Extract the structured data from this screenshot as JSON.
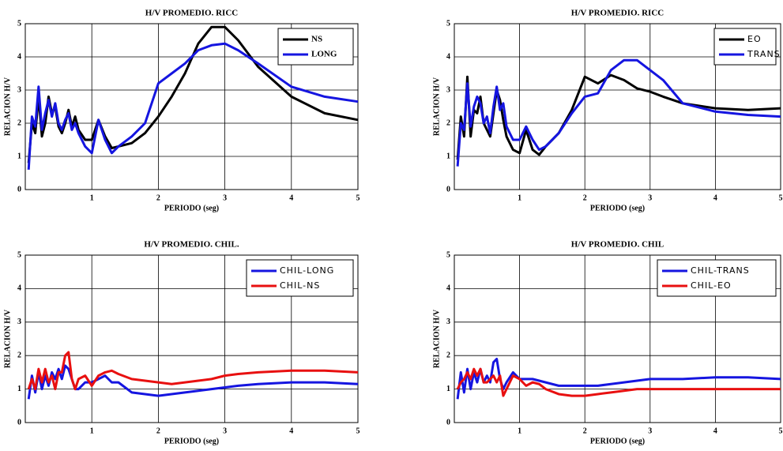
{
  "chart_data": [
    {
      "type": "line",
      "title": "H/V PROMEDIO. RICC",
      "xlabel": "PERIODO (seg)",
      "ylabel": "RELACION H/V",
      "x": [
        0.05,
        0.1,
        0.15,
        0.2,
        0.25,
        0.3,
        0.35,
        0.4,
        0.45,
        0.5,
        0.55,
        0.6,
        0.65,
        0.7,
        0.75,
        0.8,
        0.9,
        1.0,
        1.1,
        1.2,
        1.3,
        1.4,
        1.6,
        1.8,
        2.0,
        2.2,
        2.4,
        2.6,
        2.8,
        3.0,
        3.2,
        3.5,
        4.0,
        4.5,
        5.0
      ],
      "series": [
        {
          "name": "NS",
          "color": "#000000",
          "values": [
            0.8,
            2.0,
            1.7,
            2.8,
            1.6,
            2.0,
            2.8,
            2.3,
            2.5,
            1.9,
            1.7,
            2.0,
            2.4,
            1.9,
            2.2,
            1.8,
            1.5,
            1.5,
            2.1,
            1.6,
            1.25,
            1.3,
            1.4,
            1.7,
            2.2,
            2.8,
            3.5,
            4.4,
            4.9,
            4.9,
            4.5,
            3.7,
            2.8,
            2.3,
            2.1
          ]
        },
        {
          "name": "LONG",
          "color": "#1515e0",
          "values": [
            0.6,
            2.2,
            1.9,
            3.1,
            1.8,
            2.3,
            2.7,
            2.2,
            2.6,
            2.0,
            1.8,
            2.1,
            2.3,
            1.8,
            2.0,
            1.7,
            1.3,
            1.1,
            2.1,
            1.5,
            1.1,
            1.3,
            1.6,
            2.0,
            3.2,
            3.5,
            3.8,
            4.2,
            4.35,
            4.4,
            4.2,
            3.8,
            3.1,
            2.8,
            2.65
          ]
        }
      ],
      "xlim": [
        0,
        5
      ],
      "ylim": [
        0,
        5
      ],
      "xticks": [
        1,
        2,
        3,
        4,
        5
      ],
      "yticks": [
        0,
        1,
        2,
        3,
        4,
        5
      ],
      "grid": true,
      "legend": "upper right"
    },
    {
      "type": "line",
      "title": "H/V PROMEDIO. RICC",
      "xlabel": "PERIODO (seg)",
      "ylabel": "RELACION H/V",
      "x": [
        0.05,
        0.1,
        0.15,
        0.2,
        0.25,
        0.3,
        0.35,
        0.4,
        0.45,
        0.5,
        0.55,
        0.6,
        0.65,
        0.7,
        0.75,
        0.8,
        0.9,
        1.0,
        1.1,
        1.2,
        1.3,
        1.4,
        1.6,
        1.8,
        2.0,
        2.2,
        2.4,
        2.6,
        2.8,
        3.0,
        3.2,
        3.5,
        4.0,
        4.5,
        5.0
      ],
      "series": [
        {
          "name": "EO",
          "color": "#000000",
          "values": [
            0.9,
            2.2,
            1.6,
            3.4,
            1.6,
            2.4,
            2.3,
            2.8,
            2.0,
            1.8,
            1.6,
            2.3,
            3.0,
            2.7,
            2.1,
            1.6,
            1.2,
            1.1,
            1.8,
            1.2,
            1.05,
            1.3,
            1.7,
            2.4,
            3.4,
            3.2,
            3.45,
            3.3,
            3.05,
            2.95,
            2.8,
            2.6,
            2.45,
            2.4,
            2.45
          ]
        },
        {
          "name": "TRANS",
          "color": "#1515e0",
          "values": [
            0.7,
            2.0,
            1.8,
            3.2,
            1.9,
            2.5,
            2.8,
            2.6,
            2.0,
            2.2,
            1.7,
            2.5,
            3.1,
            2.4,
            2.6,
            1.9,
            1.5,
            1.5,
            1.9,
            1.5,
            1.2,
            1.3,
            1.7,
            2.3,
            2.8,
            2.9,
            3.6,
            3.9,
            3.9,
            3.6,
            3.3,
            2.6,
            2.35,
            2.25,
            2.2
          ]
        }
      ],
      "xlim": [
        0,
        5
      ],
      "ylim": [
        0,
        5
      ],
      "xticks": [
        1,
        2,
        3,
        4,
        5
      ],
      "yticks": [
        0,
        1,
        2,
        3,
        4,
        5
      ],
      "grid": true,
      "legend": "upper right"
    },
    {
      "type": "line",
      "title": "H/V PROMEDIO. CHIL.",
      "xlabel": "PERIODO (seg)",
      "ylabel": "RELACION H/V",
      "x": [
        0.05,
        0.1,
        0.15,
        0.2,
        0.25,
        0.3,
        0.35,
        0.4,
        0.45,
        0.5,
        0.55,
        0.6,
        0.65,
        0.7,
        0.75,
        0.8,
        0.9,
        1.0,
        1.1,
        1.2,
        1.3,
        1.4,
        1.6,
        1.8,
        2.0,
        2.2,
        2.4,
        2.6,
        2.8,
        3.0,
        3.2,
        3.5,
        4.0,
        4.5,
        5.0
      ],
      "series": [
        {
          "name": "CHIL-LONG",
          "color": "#1515e0",
          "values": [
            0.7,
            1.4,
            0.9,
            1.5,
            1.0,
            1.4,
            1.1,
            1.5,
            1.3,
            1.6,
            1.3,
            1.7,
            1.6,
            1.3,
            1.0,
            1.0,
            1.2,
            1.2,
            1.3,
            1.4,
            1.2,
            1.2,
            0.9,
            0.85,
            0.8,
            0.85,
            0.9,
            0.95,
            1.0,
            1.05,
            1.1,
            1.15,
            1.2,
            1.2,
            1.15
          ]
        },
        {
          "name": "CHIL-NS",
          "color": "#e81010",
          "values": [
            1.0,
            1.3,
            1.0,
            1.6,
            1.2,
            1.6,
            1.2,
            1.4,
            1.0,
            1.5,
            1.5,
            2.0,
            2.1,
            1.3,
            1.0,
            1.3,
            1.4,
            1.1,
            1.4,
            1.5,
            1.55,
            1.45,
            1.3,
            1.25,
            1.2,
            1.15,
            1.2,
            1.25,
            1.3,
            1.4,
            1.45,
            1.5,
            1.55,
            1.55,
            1.5
          ]
        }
      ],
      "xlim": [
        0,
        5
      ],
      "ylim": [
        0,
        5
      ],
      "xticks": [
        1,
        2,
        3,
        4,
        5
      ],
      "yticks": [
        0,
        1,
        2,
        3,
        4,
        5
      ],
      "grid": true,
      "legend": "upper right"
    },
    {
      "type": "line",
      "title": "H/V PROMEDIO. CHIL",
      "xlabel": "PERIODO (seg)",
      "ylabel": "RELACION H/V",
      "x": [
        0.05,
        0.1,
        0.15,
        0.2,
        0.25,
        0.3,
        0.35,
        0.4,
        0.45,
        0.5,
        0.55,
        0.6,
        0.65,
        0.7,
        0.75,
        0.8,
        0.9,
        1.0,
        1.1,
        1.2,
        1.3,
        1.4,
        1.6,
        1.8,
        2.0,
        2.2,
        2.4,
        2.6,
        2.8,
        3.0,
        3.2,
        3.5,
        4.0,
        4.5,
        5.0
      ],
      "series": [
        {
          "name": "CHIL-TRANS",
          "color": "#1515e0",
          "values": [
            0.7,
            1.5,
            0.9,
            1.6,
            1.0,
            1.5,
            1.2,
            1.6,
            1.2,
            1.4,
            1.2,
            1.8,
            1.9,
            1.3,
            1.0,
            1.2,
            1.5,
            1.3,
            1.3,
            1.3,
            1.25,
            1.2,
            1.1,
            1.1,
            1.1,
            1.1,
            1.15,
            1.2,
            1.25,
            1.3,
            1.3,
            1.3,
            1.35,
            1.35,
            1.3
          ]
        },
        {
          "name": "CHIL-EO",
          "color": "#e81010",
          "values": [
            1.0,
            1.2,
            1.3,
            1.5,
            1.3,
            1.6,
            1.4,
            1.6,
            1.2,
            1.2,
            1.3,
            1.4,
            1.2,
            1.4,
            0.8,
            1.0,
            1.4,
            1.3,
            1.1,
            1.2,
            1.15,
            1.0,
            0.85,
            0.8,
            0.8,
            0.85,
            0.9,
            0.95,
            1.0,
            1.0,
            1.0,
            1.0,
            1.0,
            1.0,
            1.0
          ]
        }
      ],
      "xlim": [
        0,
        5
      ],
      "ylim": [
        0,
        5
      ],
      "xticks": [
        1,
        2,
        3,
        4,
        5
      ],
      "yticks": [
        0,
        1,
        2,
        3,
        4,
        5
      ],
      "grid": true,
      "legend": "upper right"
    }
  ]
}
